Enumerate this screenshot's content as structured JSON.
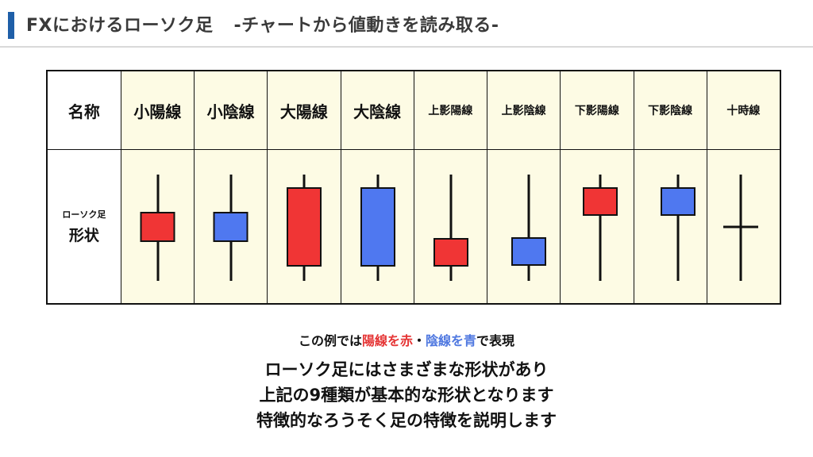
{
  "header": {
    "title": "FXにおけるローソク足",
    "subtitle": "-チャートから値動きを読み取る-"
  },
  "table": {
    "row_header_name": "名称",
    "row_header_shape_line1": "ローソク足",
    "row_header_shape_line2": "形状",
    "columns": [
      {
        "label": "小陽線",
        "type": "bullish"
      },
      {
        "label": "小陰線",
        "type": "bearish"
      },
      {
        "label": "大陽線",
        "type": "bullish"
      },
      {
        "label": "大陰線",
        "type": "bearish"
      },
      {
        "label": "上影陽線",
        "type": "bullish"
      },
      {
        "label": "上影陰線",
        "type": "bearish"
      },
      {
        "label": "下影陽線",
        "type": "bullish"
      },
      {
        "label": "下影陰線",
        "type": "bearish"
      },
      {
        "label": "十時線",
        "type": "doji"
      }
    ]
  },
  "caption": {
    "prefix": "この例では",
    "yang": "陽線を赤",
    "dot": "・",
    "yin": "陰線を青",
    "suffix": "で表現"
  },
  "body": {
    "line1": "ローソク足にはさまざまな形状があり",
    "line2": "上記の9種類が基本的な形状となります",
    "line3": "特徴的なろうそく足の特徴を説明します"
  },
  "colors": {
    "bullish": "#f03535",
    "bearish": "#4f78f0",
    "accent": "#1f5fa8",
    "cell_bg": "#fdfbe4"
  }
}
